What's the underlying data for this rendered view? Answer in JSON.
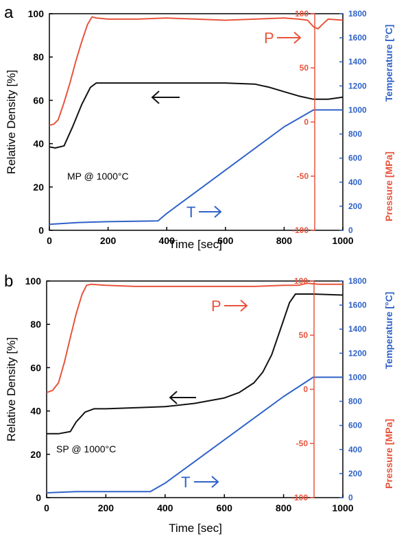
{
  "colors": {
    "density": "#111111",
    "pressure": "#e8533b",
    "temperature": "#2f62c8",
    "axis_left": "#000000"
  },
  "chart_data": [
    {
      "type": "line",
      "panel": "a",
      "annotation": "MP @ 1000°C",
      "pressure_label": "P",
      "temperature_label": "T",
      "xlabel": "Time [sec]",
      "ylabel": "Relative Density [%]",
      "y2label": "Temperature [°C]",
      "y3label": "Pressure [MPa]",
      "xlim": [
        0,
        1000
      ],
      "ylim": [
        0,
        100
      ],
      "y2lim": [
        0,
        1800
      ],
      "y3lim": [
        -100,
        100
      ],
      "xticks": [
        "0",
        "200",
        "400",
        "600",
        "800",
        "1000"
      ],
      "yticks": [
        "0",
        "20",
        "40",
        "60",
        "80",
        "100"
      ],
      "y2ticks": [
        "0",
        "200",
        "400",
        "600",
        "800",
        "1000",
        "1200",
        "1400",
        "1600",
        "1800"
      ],
      "y3ticks": [
        "-100",
        "-50",
        "0",
        "50",
        "100"
      ],
      "grid": false,
      "series": [
        {
          "name": "Relative Density",
          "axis": "left",
          "color_key": "density",
          "x": [
            0,
            20,
            50,
            80,
            110,
            140,
            160,
            200,
            300,
            400,
            500,
            600,
            700,
            750,
            800,
            850,
            900,
            950,
            1000
          ],
          "y": [
            38.5,
            38,
            39,
            48,
            58,
            66,
            68,
            68,
            68,
            68,
            68,
            68,
            67.5,
            66,
            64,
            62,
            60.5,
            60.5,
            61.5
          ]
        },
        {
          "name": "Pressure",
          "axis": "pressure",
          "color_key": "pressure",
          "x": [
            0,
            15,
            30,
            50,
            70,
            90,
            110,
            130,
            145,
            160,
            200,
            300,
            400,
            500,
            600,
            700,
            800,
            850,
            880,
            900,
            915,
            930,
            950,
            1000
          ],
          "y": [
            -3,
            -2,
            2,
            18,
            36,
            56,
            74,
            90,
            97,
            96,
            95,
            95,
            96,
            95,
            94,
            95,
            96,
            95,
            94,
            88,
            86,
            90,
            95,
            94
          ]
        },
        {
          "name": "Temperature",
          "axis": "temperature",
          "color_key": "temperature",
          "x": [
            0,
            100,
            200,
            300,
            370,
            400,
            500,
            600,
            700,
            800,
            900,
            920,
            1000
          ],
          "y": [
            50,
            65,
            72,
            76,
            78,
            140,
            320,
            500,
            680,
            860,
            1000,
            1000,
            1000
          ]
        }
      ]
    },
    {
      "type": "line",
      "panel": "b",
      "annotation": "SP @ 1000°C",
      "pressure_label": "P",
      "temperature_label": "T",
      "xlabel": "Time [sec]",
      "ylabel": "Relative Density [%]",
      "y2label": "Temperature [°C]",
      "y3label": "Pressure [MPa]",
      "xlim": [
        0,
        1000
      ],
      "ylim": [
        0,
        100
      ],
      "y2lim": [
        0,
        1800
      ],
      "y3lim": [
        -100,
        100
      ],
      "xticks": [
        "0",
        "200",
        "400",
        "600",
        "800",
        "1000"
      ],
      "yticks": [
        "0",
        "20",
        "40",
        "60",
        "80",
        "100"
      ],
      "y2ticks": [
        "0",
        "200",
        "400",
        "600",
        "800",
        "1000",
        "1200",
        "1400",
        "1600",
        "1800"
      ],
      "y3ticks": [
        "-100",
        "-50",
        "0",
        "50",
        "100"
      ],
      "grid": false,
      "series": [
        {
          "name": "Relative Density",
          "axis": "left",
          "color_key": "density",
          "x": [
            0,
            40,
            80,
            100,
            130,
            160,
            200,
            300,
            400,
            500,
            600,
            650,
            700,
            730,
            760,
            790,
            820,
            840,
            860,
            900,
            1000
          ],
          "y": [
            29.5,
            29.5,
            30.5,
            35,
            39.5,
            41,
            41,
            41.5,
            42,
            43.5,
            46,
            48.5,
            53,
            58,
            66,
            78,
            90,
            94,
            94,
            94,
            93.5
          ]
        },
        {
          "name": "Pressure",
          "axis": "pressure",
          "color_key": "pressure",
          "x": [
            0,
            20,
            40,
            60,
            80,
            100,
            120,
            135,
            150,
            200,
            300,
            400,
            500,
            600,
            700,
            800,
            850,
            880,
            920,
            960,
            1000
          ],
          "y": [
            -3,
            -1,
            6,
            25,
            48,
            70,
            88,
            96,
            97,
            96,
            95,
            95,
            95,
            95,
            95,
            96,
            96,
            98,
            97,
            97,
            97
          ]
        },
        {
          "name": "Temperature",
          "axis": "temperature",
          "color_key": "temperature",
          "x": [
            0,
            100,
            200,
            300,
            350,
            400,
            500,
            600,
            700,
            800,
            900,
            920,
            1000
          ],
          "y": [
            40,
            50,
            50,
            50,
            50,
            120,
            300,
            480,
            660,
            840,
            1000,
            1000,
            1000
          ]
        }
      ]
    }
  ]
}
